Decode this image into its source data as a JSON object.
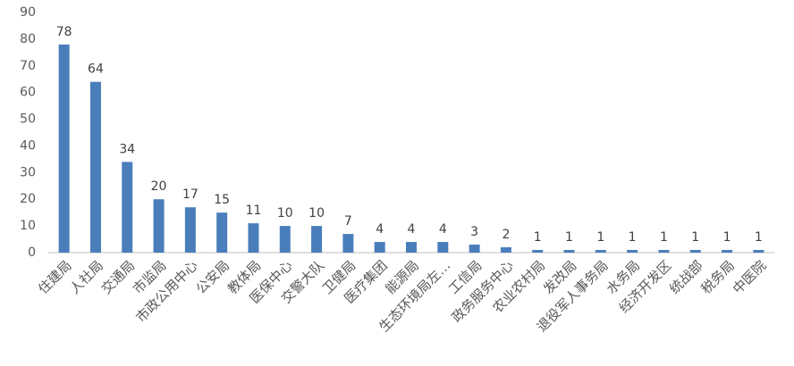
{
  "chart_data": {
    "type": "bar",
    "categories": [
      "住建局",
      "人社局",
      "交通局",
      "市监局",
      "市政公用中心",
      "公安局",
      "教体局",
      "医保中心",
      "交警大队",
      "卫健局",
      "医疗集团",
      "能源局",
      "生态环境局左…",
      "工信局",
      "政务服务中心",
      "农业农村局",
      "发改局",
      "退役军人事务局",
      "水务局",
      "经济开发区",
      "统战部",
      "税务局",
      "中医院"
    ],
    "values": [
      78,
      64,
      34,
      20,
      17,
      15,
      11,
      10,
      10,
      7,
      4,
      4,
      4,
      3,
      2,
      1,
      1,
      1,
      1,
      1,
      1,
      1,
      1
    ],
    "color": "#4a7ebb",
    "ylim": [
      0,
      90
    ],
    "yticks": [
      0,
      10,
      20,
      30,
      40,
      50,
      60,
      70,
      80,
      90
    ],
    "grid": false
  }
}
